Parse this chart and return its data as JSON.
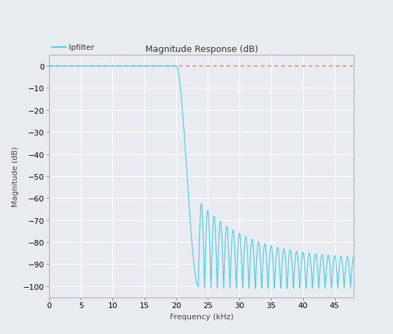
{
  "title": "Magnitude Response (dB)",
  "xlabel": "Frequency (kHz)",
  "ylabel": "Magnitude (dB)",
  "xlim": [
    0,
    48
  ],
  "ylim": [
    -105,
    5
  ],
  "xticks": [
    0,
    5,
    10,
    15,
    20,
    25,
    30,
    35,
    40,
    45
  ],
  "yticks": [
    0,
    -10,
    -20,
    -30,
    -40,
    -50,
    -60,
    -70,
    -80,
    -90,
    -100
  ],
  "line_color": "#4DCEEC",
  "line_color_ref": "#E87070",
  "bg_color": "#E8ECF0",
  "legend_bg": "#D8DCE0",
  "grid_color": "#FFFFFF",
  "legend_label": "lpfilter",
  "transition_start": 20.0,
  "transition_end": 23.5,
  "stopband_null": -101,
  "first_peak_db": -61,
  "final_peak_db": -88,
  "ripple_period_khz": 1.0,
  "title_fontsize": 9,
  "label_fontsize": 8,
  "tick_fontsize": 8
}
